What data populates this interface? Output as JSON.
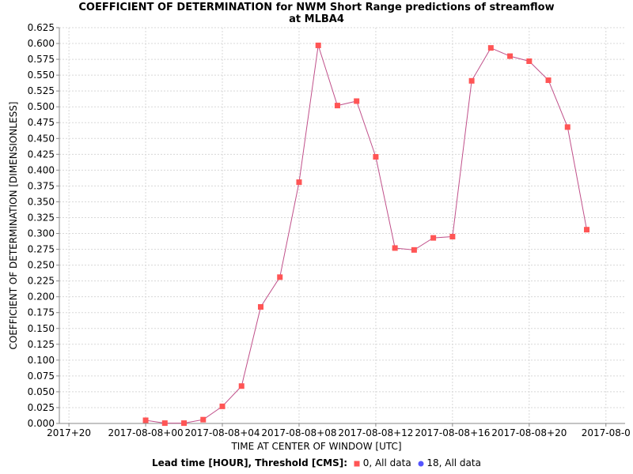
{
  "chart_data": {
    "type": "line",
    "title": "COEFFICIENT OF DETERMINATION for NWM Short Range predictions of streamflow",
    "subtitle": "at MLBA4",
    "xlabel": "TIME AT CENTER OF WINDOW [UTC]",
    "ylabel": "COEFFICIENT OF DETERMINATION [DIMENSIONLESS]",
    "ylim": [
      0,
      0.625
    ],
    "y_ticks": [
      "0.000",
      "0.025",
      "0.050",
      "0.075",
      "0.100",
      "0.125",
      "0.150",
      "0.175",
      "0.200",
      "0.225",
      "0.250",
      "0.275",
      "0.300",
      "0.325",
      "0.350",
      "0.375",
      "0.400",
      "0.425",
      "0.450",
      "0.475",
      "0.500",
      "0.525",
      "0.550",
      "0.575",
      "0.600",
      "0.625"
    ],
    "x_ticks": [
      "2017+20",
      "2017-08-08+00",
      "2017-08-08+04",
      "2017-08-08+08",
      "2017-08-08+12",
      "2017-08-08+16",
      "2017-08-08+20",
      "2017-08-0"
    ],
    "x_hours": [
      -4,
      0,
      4,
      8,
      12,
      16,
      20,
      24
    ],
    "grid": true,
    "legend_title": "Lead time [HOUR], Threshold [CMS]:",
    "series": [
      {
        "name": "0, All data",
        "color": "#ff5555",
        "line_color": "#c0508a",
        "marker": "square",
        "x": [
          0,
          1,
          2,
          3,
          4,
          5,
          6,
          7,
          8,
          9,
          10,
          11,
          12,
          13,
          14,
          15,
          16,
          17,
          18,
          19,
          20,
          21,
          22,
          23
        ],
        "y": [
          0.005,
          0.0005,
          0.0005,
          0.006,
          0.027,
          0.059,
          0.184,
          0.231,
          0.381,
          0.597,
          0.502,
          0.509,
          0.421,
          0.277,
          0.274,
          0.293,
          0.295,
          0.541,
          0.593,
          0.58,
          0.572,
          0.542,
          0.468,
          0.306
        ]
      },
      {
        "name": "18, All data",
        "color": "#5555ff",
        "marker": "circle",
        "x": [],
        "y": []
      }
    ]
  }
}
